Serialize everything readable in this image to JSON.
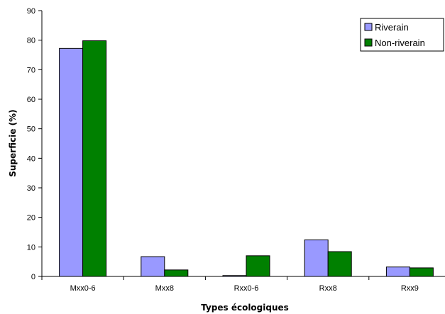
{
  "chart_data": {
    "type": "bar",
    "title": "",
    "xlabel": "Types écologiques",
    "ylabel": "Superficie (%)",
    "categories": [
      "Mxx0-6",
      "Mxx8",
      "Rxx0-6",
      "Rxx8",
      "Rxx9"
    ],
    "series": [
      {
        "name": "Riverain",
        "color": "#9999ff",
        "values": [
          77.2,
          6.7,
          0.3,
          12.4,
          3.2
        ]
      },
      {
        "name": "Non-riverain",
        "color": "#008000",
        "values": [
          79.8,
          2.2,
          7.0,
          8.4,
          2.9
        ]
      }
    ],
    "ylim": [
      0,
      90
    ],
    "yticks": [
      "0",
      "10",
      "20",
      "30",
      "40",
      "50",
      "60",
      "70",
      "80",
      "90"
    ],
    "grid": false,
    "legend_position": "top-right"
  }
}
